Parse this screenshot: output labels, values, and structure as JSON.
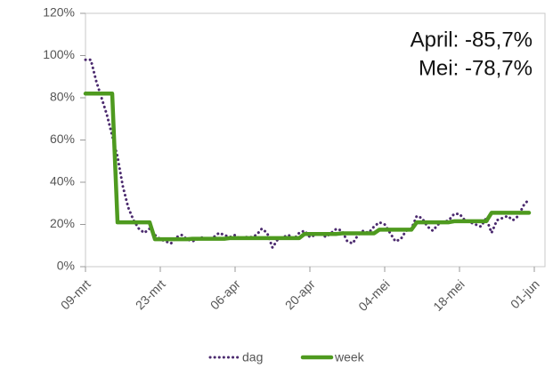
{
  "chart_data": {
    "type": "line",
    "annotations": [
      "April: -85,7%",
      "Mei: -78,7%"
    ],
    "categories": [
      "09-mrt",
      null,
      null,
      null,
      null,
      null,
      null,
      null,
      null,
      null,
      null,
      null,
      null,
      null,
      "23-mrt",
      null,
      null,
      null,
      null,
      null,
      null,
      null,
      null,
      null,
      null,
      null,
      null,
      null,
      "06-apr",
      null,
      null,
      null,
      null,
      null,
      null,
      null,
      null,
      null,
      null,
      null,
      null,
      null,
      "20-apr",
      null,
      null,
      null,
      null,
      null,
      null,
      null,
      null,
      null,
      null,
      null,
      null,
      null,
      "04-mei",
      null,
      null,
      null,
      null,
      null,
      null,
      null,
      null,
      null,
      null,
      null,
      null,
      null,
      "18-mei",
      null,
      null,
      null,
      null,
      null,
      null,
      null,
      null,
      null,
      null,
      null,
      null,
      null,
      "01-jun"
    ],
    "series": [
      {
        "name": "dag",
        "color": "#4b2a6e",
        "style": "dotted",
        "values": [
          98,
          98,
          88,
          80,
          72,
          62,
          52,
          38,
          28,
          22,
          18,
          16,
          18,
          15,
          13,
          12,
          11,
          14,
          15,
          13,
          12,
          13,
          14,
          13,
          14,
          16,
          15,
          14,
          15,
          13,
          14,
          14,
          15,
          18,
          16,
          9,
          13,
          14,
          15,
          13,
          16,
          17,
          14,
          15,
          16,
          14,
          16,
          18,
          17,
          12,
          11,
          15,
          17,
          16,
          19,
          21,
          20,
          16,
          12,
          13,
          17,
          18,
          24,
          23,
          19,
          17,
          20,
          21,
          22,
          25,
          25,
          22,
          21,
          20,
          19,
          23,
          16,
          22,
          23,
          24,
          22,
          24,
          29,
          32,
          null
        ]
      },
      {
        "name": "week",
        "color": "#4e9a1f",
        "style": "solid",
        "values": [
          82,
          82,
          82,
          82,
          82,
          82,
          21,
          21,
          21,
          21,
          21,
          21,
          21,
          13,
          13,
          13,
          13,
          13,
          13,
          13,
          13.2,
          13.2,
          13.2,
          13.2,
          13.2,
          13.2,
          13.2,
          13.5,
          13.5,
          13.5,
          13.5,
          13.5,
          13.5,
          13.5,
          13.5,
          13.5,
          13.5,
          13.5,
          13.5,
          13.5,
          13.5,
          15.5,
          15.5,
          15.5,
          15.5,
          15.5,
          15.5,
          15.5,
          15.8,
          15.8,
          15.8,
          15.8,
          15.8,
          15.8,
          15.8,
          17.5,
          17.5,
          17.5,
          17.5,
          17.5,
          17.5,
          17.5,
          21,
          21,
          21,
          21,
          21,
          21,
          21,
          21.5,
          21.5,
          21.5,
          21.5,
          21.5,
          21.5,
          21.5,
          25.5,
          25.5,
          25.5,
          25.5,
          25.5,
          25.5,
          25.5,
          25.5,
          null
        ]
      }
    ],
    "ylim": [
      0,
      120
    ],
    "yticks": [
      {
        "value": 0,
        "label": "0%"
      },
      {
        "value": 20,
        "label": "20%"
      },
      {
        "value": 40,
        "label": "40%"
      },
      {
        "value": 60,
        "label": "60%"
      },
      {
        "value": 80,
        "label": "80%"
      },
      {
        "value": 100,
        "label": "100%"
      },
      {
        "value": 120,
        "label": "120%"
      }
    ],
    "legend": "bottom"
  }
}
